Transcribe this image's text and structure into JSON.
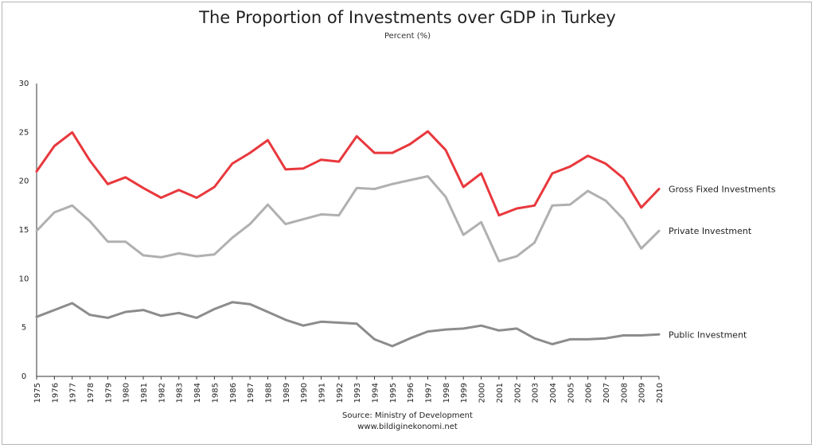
{
  "chart_data": {
    "type": "line",
    "title": "The Proportion of Investments over GDP in Turkey",
    "subtitle": "Percent (%)",
    "source_lines": [
      "Source: Ministry of Development",
      "www.bildiginekonomi.net"
    ],
    "xlabel": "",
    "ylabel": "",
    "ylim": [
      0,
      30
    ],
    "yticks": [
      0,
      5,
      10,
      15,
      20,
      25,
      30
    ],
    "grid": false,
    "legend_placement": "right, next to line ends",
    "x": [
      "1975",
      "1976",
      "1977",
      "1978",
      "1979",
      "1980",
      "1981",
      "1982",
      "1983",
      "1984",
      "1985",
      "1986",
      "1987",
      "1988",
      "1989",
      "1990",
      "1991",
      "1992",
      "1993",
      "1994",
      "1995",
      "1996",
      "1997",
      "1998",
      "1999",
      "2000",
      "2001",
      "2002",
      "2003",
      "2004",
      "2005",
      "2006",
      "2007",
      "2008",
      "2009",
      "2010"
    ],
    "series": [
      {
        "name": "Gross Fixed Investments",
        "color": "#e8383d",
        "values": [
          21.0,
          23.6,
          25.0,
          22.1,
          19.7,
          20.4,
          19.3,
          18.3,
          19.1,
          18.3,
          19.4,
          21.8,
          22.9,
          24.2,
          21.2,
          21.3,
          22.2,
          22.0,
          24.6,
          22.9,
          22.9,
          23.8,
          25.1,
          23.2,
          19.4,
          20.8,
          16.5,
          17.2,
          17.5,
          20.8,
          21.5,
          22.6,
          21.8,
          20.3,
          17.3,
          19.2
        ]
      },
      {
        "name": "Private Investment",
        "color": "#b0b0b0",
        "values": [
          14.9,
          16.8,
          17.5,
          15.9,
          13.8,
          13.8,
          12.4,
          12.2,
          12.6,
          12.3,
          12.5,
          14.2,
          15.6,
          17.6,
          15.6,
          16.1,
          16.6,
          16.5,
          19.3,
          19.2,
          19.7,
          20.1,
          20.5,
          18.4,
          14.5,
          15.8,
          11.8,
          12.3,
          13.7,
          17.5,
          17.6,
          19.0,
          18.0,
          16.1,
          13.1,
          14.9
        ]
      },
      {
        "name": "Public Investment",
        "color": "#8c8c8c",
        "values": [
          6.1,
          6.8,
          7.5,
          6.3,
          6.0,
          6.6,
          6.8,
          6.2,
          6.5,
          6.0,
          6.9,
          7.6,
          7.4,
          6.6,
          5.8,
          5.2,
          5.6,
          5.5,
          5.4,
          3.8,
          3.1,
          3.9,
          4.6,
          4.8,
          4.9,
          5.2,
          4.7,
          4.9,
          3.9,
          3.3,
          3.8,
          3.8,
          3.9,
          4.2,
          4.2,
          4.3
        ]
      }
    ]
  }
}
